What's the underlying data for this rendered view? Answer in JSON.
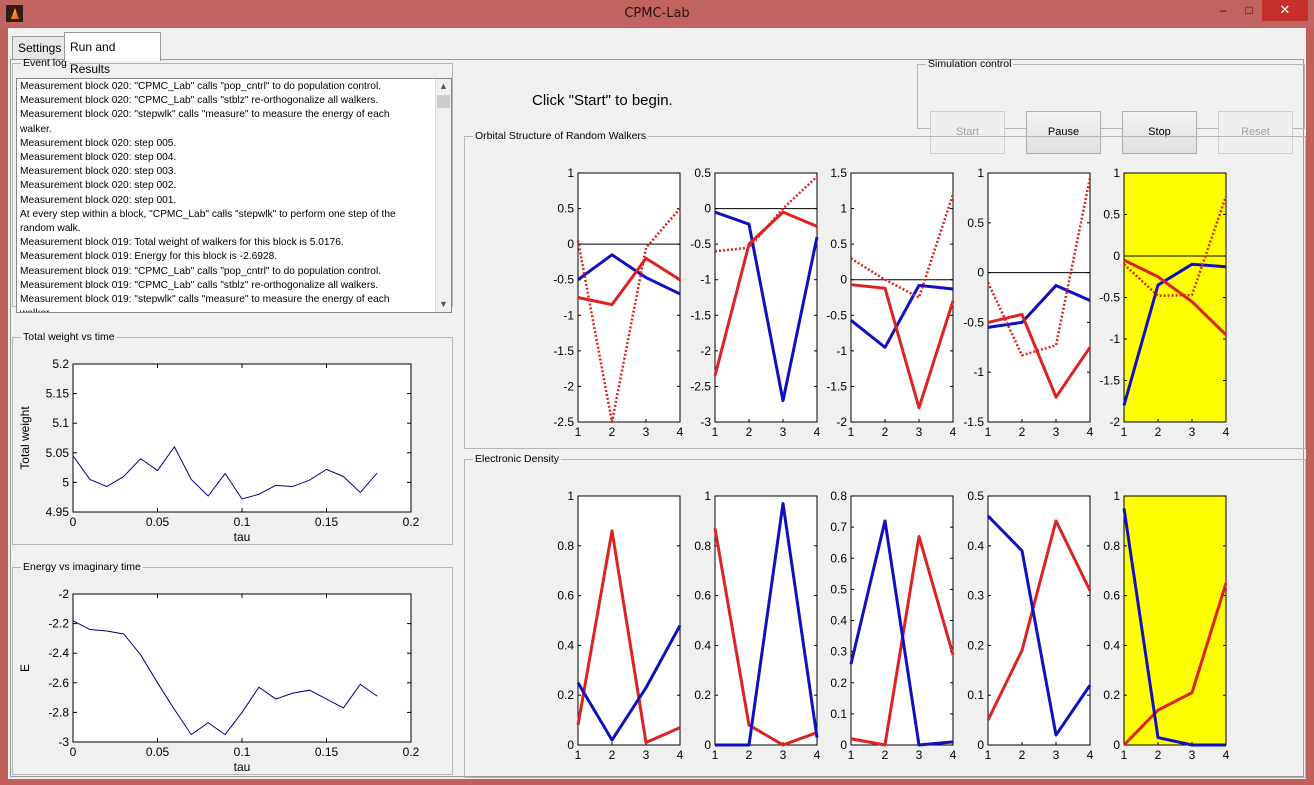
{
  "window": {
    "title": "CPMC-Lab",
    "min": "‒",
    "max": "□",
    "close": "✕"
  },
  "tabs": [
    "Settings",
    "Run and Results"
  ],
  "event_log": {
    "title": "Event log",
    "lines": [
      "Measurement block 020: \"CPMC_Lab\" calls \"pop_cntrl\" to do population control.",
      "Measurement block 020: \"CPMC_Lab\" calls \"stblz\" re-orthogonalize all walkers.",
      "Measurement block 020: \"stepwlk\" calls \"measure\" to measure the energy of each",
      "walker.",
      "Measurement block 020: step 005.",
      "Measurement block 020: step 004.",
      "Measurement block 020: step 003.",
      "Measurement block 020: step 002.",
      "Measurement block 020: step 001.",
      "At every step within a block, \"CPMC_Lab\" calls \"stepwlk\" to perform one step of the",
      "random walk.",
      "Measurement block 019: Total weight of walkers for this block is 5.0176.",
      "Measurement block 019: Energy for this block is -2.6928.",
      "Measurement block 019: \"CPMC_Lab\" calls \"pop_cntrl\" to do population control.",
      "Measurement block 019: \"CPMC_Lab\" calls \"stblz\" re-orthogonalize all walkers.",
      "Measurement block 019: \"stepwlk\" calls \"measure\" to measure the energy of each",
      "walker."
    ]
  },
  "prompt": "Click \"Start\" to begin.",
  "simulation_control": {
    "title": "Simulation control",
    "buttons": [
      "Start",
      "Pause",
      "Stop",
      "Reset"
    ]
  },
  "panels": {
    "orbital": "Orbital Structure of Random Walkers",
    "density": "Electronic Density"
  },
  "colors": {
    "red": "#dd2222",
    "blue": "#1010c0",
    "highlight": "#ffff00"
  },
  "chart_data": [
    {
      "type": "line",
      "title": "Total weight vs time",
      "xlabel": "tau",
      "ylabel": "Total weight",
      "xlim": [
        0,
        0.2
      ],
      "ylim": [
        4.95,
        5.2
      ],
      "xticks": [
        "0",
        "0.05",
        "0.1",
        "0.15",
        "0.2"
      ],
      "yticks": [
        "4.95",
        "5",
        "5.05",
        "5.1",
        "5.15",
        "5.2"
      ],
      "x": [
        0,
        0.01,
        0.02,
        0.03,
        0.04,
        0.05,
        0.06,
        0.07,
        0.08,
        0.09,
        0.1,
        0.11,
        0.12,
        0.13,
        0.14,
        0.15,
        0.16,
        0.17,
        0.18
      ],
      "y": [
        5.045,
        5.005,
        4.993,
        5.01,
        5.04,
        5.02,
        5.06,
        5.005,
        4.977,
        5.015,
        4.972,
        4.98,
        4.995,
        4.993,
        5.004,
        5.022,
        5.01,
        4.983,
        5.016
      ]
    },
    {
      "type": "line",
      "title": "Energy vs imaginary time",
      "xlabel": "tau",
      "ylabel": "E",
      "xlim": [
        0,
        0.2
      ],
      "ylim": [
        -3,
        -2
      ],
      "xticks": [
        "0",
        "0.05",
        "0.1",
        "0.15",
        "0.2"
      ],
      "yticks": [
        "-3",
        "-2.8",
        "-2.6",
        "-2.4",
        "-2.2",
        "-2"
      ],
      "x": [
        0,
        0.01,
        0.02,
        0.03,
        0.04,
        0.05,
        0.06,
        0.07,
        0.08,
        0.09,
        0.1,
        0.11,
        0.12,
        0.13,
        0.14,
        0.15,
        0.16,
        0.17,
        0.18
      ],
      "y": [
        -2.18,
        -2.24,
        -2.25,
        -2.27,
        -2.41,
        -2.6,
        -2.78,
        -2.95,
        -2.87,
        -2.95,
        -2.8,
        -2.63,
        -2.71,
        -2.67,
        -2.65,
        -2.71,
        -2.77,
        -2.61,
        -2.69
      ]
    },
    {
      "type": "line",
      "group": "orbital",
      "x": [
        1,
        2,
        3,
        4
      ],
      "xticks": [
        "1",
        "2",
        "3",
        "4"
      ],
      "subplots": [
        {
          "ylim": [
            -2.5,
            1
          ],
          "yticks": [
            "-2.5",
            "-2",
            "-1.5",
            "-1",
            "-0.5",
            "0",
            "0.5",
            "1"
          ],
          "zero_line": true,
          "series": [
            {
              "color": "blue",
              "style": "solid",
              "values": [
                -0.5,
                -0.15,
                -0.47,
                -0.7
              ]
            },
            {
              "color": "red",
              "style": "solid",
              "values": [
                -0.75,
                -0.85,
                -0.2,
                -0.5
              ]
            },
            {
              "color": "red",
              "style": "dotted",
              "values": [
                0.05,
                -2.5,
                -0.05,
                0.5
              ]
            }
          ]
        },
        {
          "ylim": [
            -3,
            0.5
          ],
          "yticks": [
            "-3",
            "-2.5",
            "-2",
            "-1.5",
            "-1",
            "-0.5",
            "0",
            "0.5"
          ],
          "zero_line": true,
          "series": [
            {
              "color": "blue",
              "style": "solid",
              "values": [
                -0.05,
                -0.22,
                -2.7,
                -0.4
              ]
            },
            {
              "color": "red",
              "style": "solid",
              "values": [
                -2.35,
                -0.5,
                -0.05,
                -0.25
              ]
            },
            {
              "color": "red",
              "style": "dotted",
              "values": [
                -0.6,
                -0.55,
                0.0,
                0.45
              ]
            }
          ]
        },
        {
          "ylim": [
            -2,
            1.5
          ],
          "yticks": [
            "-2",
            "-1.5",
            "-1",
            "-0.5",
            "0",
            "0.5",
            "1",
            "1.5"
          ],
          "zero_line": true,
          "series": [
            {
              "color": "blue",
              "style": "solid",
              "values": [
                -0.57,
                -0.95,
                -0.08,
                -0.13
              ]
            },
            {
              "color": "red",
              "style": "solid",
              "values": [
                -0.07,
                -0.12,
                -1.8,
                -0.3
              ]
            },
            {
              "color": "red",
              "style": "dotted",
              "values": [
                0.3,
                0.0,
                -0.25,
                1.2
              ]
            }
          ]
        },
        {
          "ylim": [
            -1.5,
            1
          ],
          "yticks": [
            "-1.5",
            "-1",
            "-0.5",
            "0",
            "0.5",
            "1"
          ],
          "zero_line": true,
          "series": [
            {
              "color": "blue",
              "style": "solid",
              "values": [
                -0.55,
                -0.5,
                -0.13,
                -0.28
              ]
            },
            {
              "color": "red",
              "style": "solid",
              "values": [
                -0.5,
                -0.42,
                -1.25,
                -0.75
              ]
            },
            {
              "color": "red",
              "style": "dotted",
              "values": [
                -0.1,
                -0.83,
                -0.73,
                0.95
              ]
            }
          ]
        },
        {
          "ylim": [
            -2,
            1
          ],
          "yticks": [
            "-2",
            "-1.5",
            "-1",
            "-0.5",
            "0",
            "0.5",
            "1"
          ],
          "zero_line": true,
          "highlight": true,
          "series": [
            {
              "color": "blue",
              "style": "solid",
              "values": [
                -1.8,
                -0.35,
                -0.1,
                -0.13
              ]
            },
            {
              "color": "red",
              "style": "solid",
              "values": [
                -0.05,
                -0.25,
                -0.55,
                -0.95
              ]
            },
            {
              "color": "red",
              "style": "dotted",
              "values": [
                -0.1,
                -0.48,
                -0.47,
                0.72
              ]
            }
          ]
        }
      ]
    },
    {
      "type": "line",
      "group": "density",
      "x": [
        1,
        2,
        3,
        4
      ],
      "xticks": [
        "1",
        "2",
        "3",
        "4"
      ],
      "subplots": [
        {
          "ylim": [
            0,
            1
          ],
          "yticks": [
            "0",
            "0.2",
            "0.4",
            "0.6",
            "0.8",
            "1"
          ],
          "series": [
            {
              "color": "red",
              "style": "solid",
              "values": [
                0.08,
                0.86,
                0.01,
                0.07
              ]
            },
            {
              "color": "blue",
              "style": "solid",
              "values": [
                0.25,
                0.02,
                0.23,
                0.48
              ]
            }
          ]
        },
        {
          "ylim": [
            0,
            1
          ],
          "yticks": [
            "0",
            "0.2",
            "0.4",
            "0.6",
            "0.8",
            "1"
          ],
          "series": [
            {
              "color": "red",
              "style": "solid",
              "values": [
                0.87,
                0.08,
                0.0,
                0.05
              ]
            },
            {
              "color": "blue",
              "style": "solid",
              "values": [
                0.0,
                0.0,
                0.97,
                0.03
              ]
            }
          ]
        },
        {
          "ylim": [
            0,
            0.8
          ],
          "yticks": [
            "0",
            "0.1",
            "0.2",
            "0.3",
            "0.4",
            "0.5",
            "0.6",
            "0.7",
            "0.8"
          ],
          "series": [
            {
              "color": "red",
              "style": "solid",
              "values": [
                0.02,
                0.0,
                0.67,
                0.29
              ]
            },
            {
              "color": "blue",
              "style": "solid",
              "values": [
                0.26,
                0.72,
                0.0,
                0.01
              ]
            }
          ]
        },
        {
          "ylim": [
            0,
            0.5
          ],
          "yticks": [
            "0",
            "0.1",
            "0.2",
            "0.3",
            "0.4",
            "0.5"
          ],
          "series": [
            {
              "color": "red",
              "style": "solid",
              "values": [
                0.05,
                0.19,
                0.45,
                0.31
              ]
            },
            {
              "color": "blue",
              "style": "solid",
              "values": [
                0.46,
                0.39,
                0.02,
                0.12
              ]
            }
          ]
        },
        {
          "ylim": [
            0,
            1
          ],
          "yticks": [
            "0",
            "0.2",
            "0.4",
            "0.6",
            "0.8",
            "1"
          ],
          "highlight": true,
          "series": [
            {
              "color": "red",
              "style": "solid",
              "values": [
                0.0,
                0.14,
                0.21,
                0.65
              ]
            },
            {
              "color": "blue",
              "style": "solid",
              "values": [
                0.95,
                0.03,
                0.0,
                0.0
              ]
            }
          ]
        }
      ]
    }
  ]
}
